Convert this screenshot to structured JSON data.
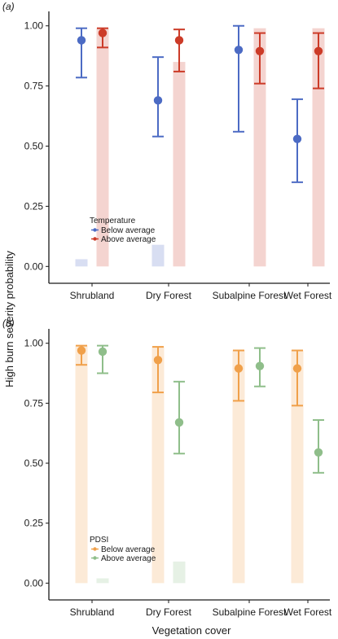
{
  "figure": {
    "ylabel": "High burn severity probability",
    "xlabel": "Vegetation cover"
  },
  "chart_data": [
    {
      "type": "scatter",
      "panel_label": "(a)",
      "categories": [
        "Shrubland",
        "Dry Forest",
        "Subalpine Forest",
        "Wet Forest"
      ],
      "ylim": [
        -0.07,
        1.06
      ],
      "yticks": [
        "0.00",
        "0.25",
        "0.50",
        "0.75",
        "1.00"
      ],
      "ytick_values": [
        0,
        0.25,
        0.5,
        0.75,
        1.0
      ],
      "grid": false,
      "legend": {
        "title": "Temperature",
        "placement": "lower-left",
        "entries": [
          "Below average",
          "Above average"
        ]
      },
      "series": [
        {
          "name": "Below average",
          "color": "#4c6bc4",
          "points": [
            0.94,
            0.69,
            0.9,
            0.53
          ],
          "lower": [
            0.785,
            0.54,
            0.56,
            0.35
          ],
          "upper": [
            0.99,
            0.87,
            1.0,
            0.695
          ],
          "bars": [
            0.03,
            0.09,
            0.0,
            0.0
          ]
        },
        {
          "name": "Above average",
          "color": "#cc3b28",
          "points": [
            0.97,
            0.94,
            0.895,
            0.895
          ],
          "lower": [
            0.91,
            0.81,
            0.76,
            0.74
          ],
          "upper": [
            0.99,
            0.985,
            0.97,
            0.97
          ],
          "bars": [
            0.99,
            0.85,
            0.99,
            0.99
          ]
        }
      ]
    },
    {
      "type": "scatter",
      "panel_label": "(b)",
      "categories": [
        "Shrubland",
        "Dry Forest",
        "Subalpine Forest",
        "Wet Forest"
      ],
      "ylim": [
        -0.07,
        1.06
      ],
      "yticks": [
        "0.00",
        "0.25",
        "0.50",
        "0.75",
        "1.00"
      ],
      "ytick_values": [
        0,
        0.25,
        0.5,
        0.75,
        1.0
      ],
      "grid": false,
      "legend": {
        "title": "PDSI",
        "placement": "lower-left",
        "entries": [
          "Below average",
          "Above average"
        ]
      },
      "series": [
        {
          "name": "Below average",
          "color": "#f0a04a",
          "points": [
            0.97,
            0.93,
            0.895,
            0.895
          ],
          "lower": [
            0.91,
            0.795,
            0.76,
            0.74
          ],
          "upper": [
            0.99,
            0.985,
            0.97,
            0.97
          ],
          "bars": [
            0.99,
            0.985,
            0.97,
            0.97
          ]
        },
        {
          "name": "Above average",
          "color": "#8fbe8a",
          "points": [
            0.965,
            0.67,
            0.905,
            0.545
          ],
          "lower": [
            0.875,
            0.54,
            0.82,
            0.46
          ],
          "upper": [
            0.99,
            0.84,
            0.98,
            0.68
          ],
          "bars": [
            0.02,
            0.09,
            0.0,
            0.0
          ]
        }
      ]
    }
  ]
}
